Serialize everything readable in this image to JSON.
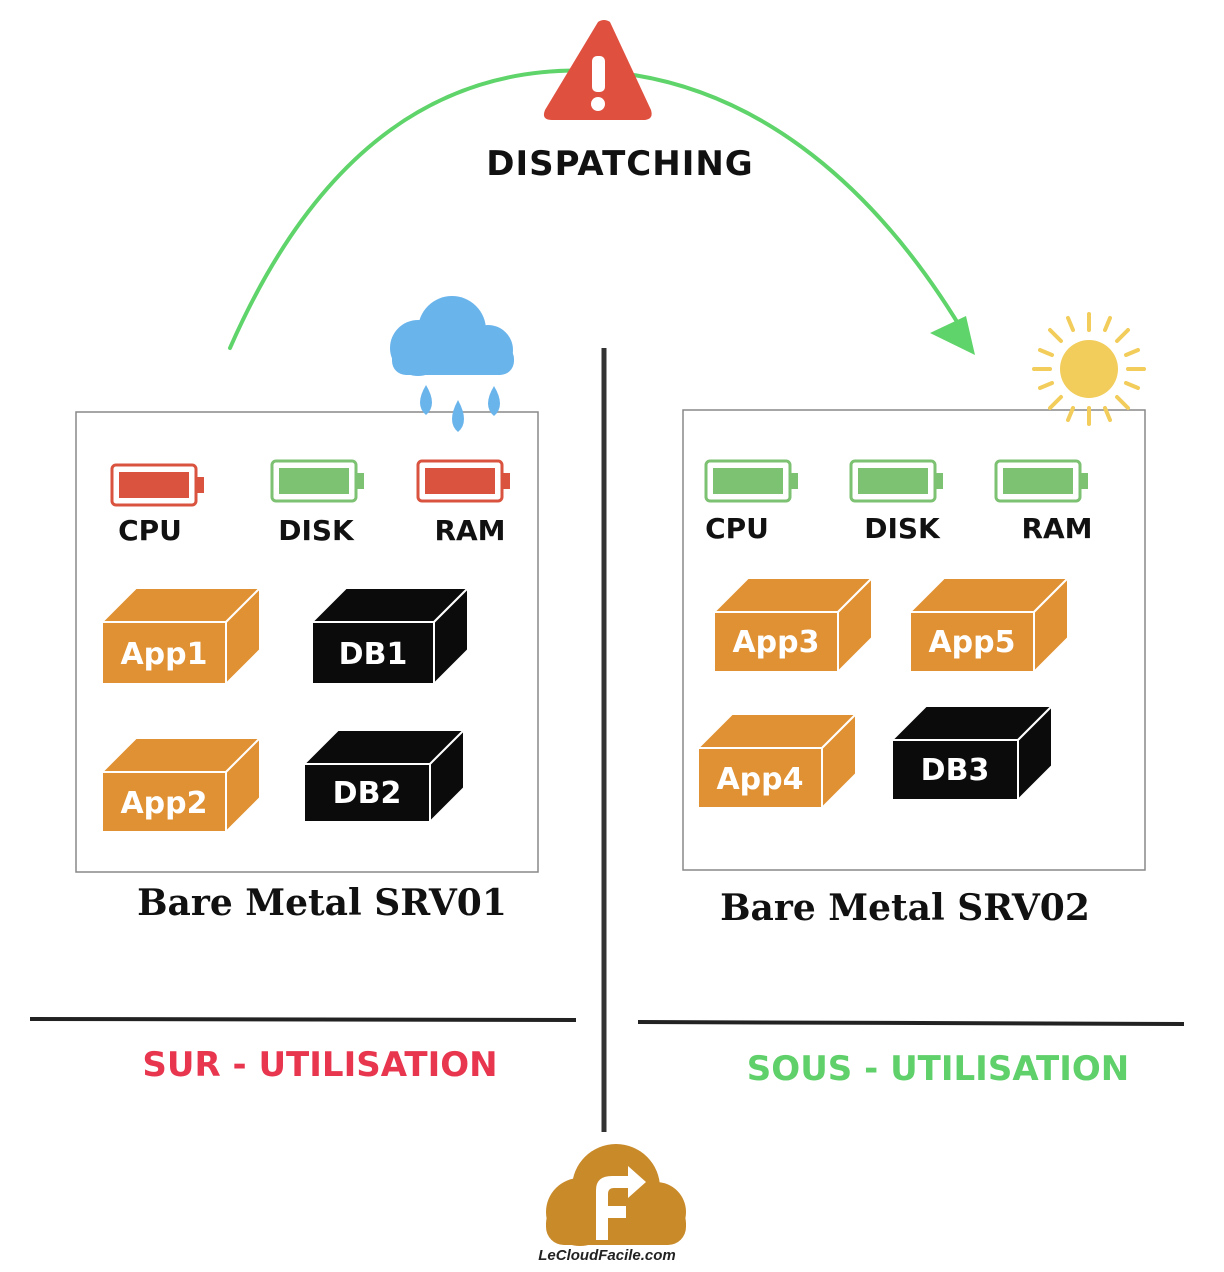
{
  "dispatch": {
    "label": "DISPATCHING",
    "icon": "warning-triangle-icon"
  },
  "servers": [
    {
      "name": "Bare Metal SRV01",
      "weather_icon": "rain-cloud-icon",
      "resources": [
        {
          "label": "CPU",
          "status": "high"
        },
        {
          "label": "DISK",
          "status": "ok"
        },
        {
          "label": "RAM",
          "status": "high"
        }
      ],
      "boxes": [
        {
          "label": "App1",
          "kind": "app"
        },
        {
          "label": "DB1",
          "kind": "db"
        },
        {
          "label": "App2",
          "kind": "app"
        },
        {
          "label": "DB2",
          "kind": "db"
        }
      ],
      "state": {
        "label": "SUR - UTILISATION",
        "color": "#e8364f"
      }
    },
    {
      "name": "Bare Metal SRV02",
      "weather_icon": "sun-icon",
      "resources": [
        {
          "label": "CPU",
          "status": "ok"
        },
        {
          "label": "DISK",
          "status": "ok"
        },
        {
          "label": "RAM",
          "status": "ok"
        }
      ],
      "boxes": [
        {
          "label": "App3",
          "kind": "app"
        },
        {
          "label": "App5",
          "kind": "app"
        },
        {
          "label": "App4",
          "kind": "app"
        },
        {
          "label": "DB3",
          "kind": "db"
        }
      ],
      "state": {
        "label": "SOUS - UTILISATION",
        "color": "#5fd06a"
      }
    }
  ],
  "colors": {
    "battery_high": "#d9533f",
    "battery_ok": "#7dc172",
    "app_box": "#e09133",
    "db_box": "#0b0b0b",
    "arrow": "#5fd46a",
    "logo": "#c98a2a"
  },
  "logo": {
    "text": "LeCloudFacile.com",
    "icon": "cloud-logo-icon"
  }
}
